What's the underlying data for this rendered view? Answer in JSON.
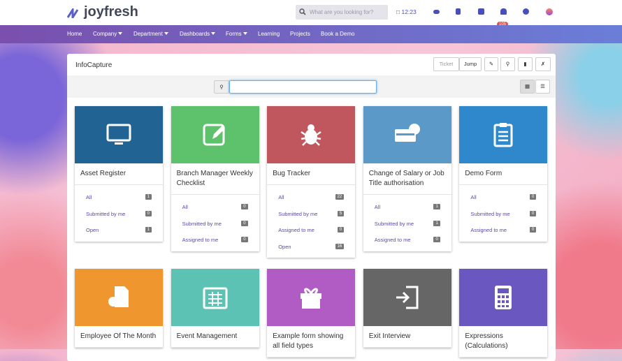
{
  "header": {
    "logo": "joyfresh",
    "search_placeholder": "What are you looking for?",
    "time": "12:23",
    "notification_count": "105"
  },
  "nav": [
    {
      "label": "Home",
      "dropdown": false
    },
    {
      "label": "Company",
      "dropdown": true
    },
    {
      "label": "Department",
      "dropdown": true
    },
    {
      "label": "Dashboards",
      "dropdown": true
    },
    {
      "label": "Forms",
      "dropdown": true
    },
    {
      "label": "Learning",
      "dropdown": false
    },
    {
      "label": "Projects",
      "dropdown": false
    },
    {
      "label": "Book a Demo",
      "dropdown": false
    }
  ],
  "panel": {
    "title": "InfoCapture",
    "ticket_placeholder": "Ticket",
    "jump": "Jump"
  },
  "cards": [
    {
      "title": "Asset Register",
      "color": "#216494",
      "links": [
        {
          "label": "All",
          "count": 1
        },
        {
          "label": "Submitted by me",
          "count": 0
        },
        {
          "label": "Open",
          "count": 1
        }
      ]
    },
    {
      "title": "Branch Manager Weekly Checklist",
      "color": "#5dc26b",
      "links": [
        {
          "label": "All",
          "count": 0
        },
        {
          "label": "Submitted by me",
          "count": 0
        },
        {
          "label": "Assigned to me",
          "count": 0
        }
      ]
    },
    {
      "title": "Bug Tracker",
      "color": "#c0575e",
      "links": [
        {
          "label": "All",
          "count": 22
        },
        {
          "label": "Submitted by me",
          "count": 5
        },
        {
          "label": "Assigned to me",
          "count": 0
        },
        {
          "label": "Open",
          "count": 16
        }
      ]
    },
    {
      "title": "Change of Salary or Job Title authorisation",
      "color": "#5b9ac8",
      "links": [
        {
          "label": "All",
          "count": 1
        },
        {
          "label": "Submitted by me",
          "count": 1
        },
        {
          "label": "Assigned to me",
          "count": 0
        }
      ]
    },
    {
      "title": "Demo Form",
      "color": "#2f88cc",
      "links": [
        {
          "label": "All",
          "count": 0
        },
        {
          "label": "Submitted by me",
          "count": 0
        },
        {
          "label": "Assigned to me",
          "count": 0
        }
      ]
    },
    {
      "title": "Employee Of The Month",
      "color": "#f0962e",
      "links": []
    },
    {
      "title": "Event Management",
      "color": "#5bc2b4",
      "links": []
    },
    {
      "title": "Example form showing all field types",
      "color": "#b05cc4",
      "links": []
    },
    {
      "title": "Exit Interview",
      "color": "#666666",
      "links": []
    },
    {
      "title": "Expressions (Calculations)",
      "color": "#6a57c0",
      "links": []
    }
  ]
}
